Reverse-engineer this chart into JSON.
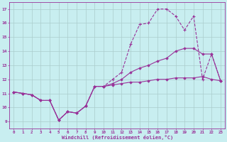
{
  "xlabel": "Windchill (Refroidissement éolien,°C)",
  "background_color": "#c8eef0",
  "line_color": "#993399",
  "grid_color": "#aacccc",
  "x_ticks": [
    0,
    1,
    2,
    3,
    4,
    5,
    6,
    7,
    8,
    9,
    10,
    11,
    12,
    13,
    14,
    15,
    16,
    17,
    18,
    19,
    20,
    21,
    22,
    23
  ],
  "y_ticks": [
    9,
    10,
    11,
    12,
    13,
    14,
    15,
    16,
    17
  ],
  "xlim": [
    -0.5,
    23.5
  ],
  "ylim": [
    8.5,
    17.5
  ],
  "line1_y": [
    11.1,
    11.0,
    10.9,
    10.5,
    10.5,
    9.1,
    9.7,
    9.6,
    10.1,
    11.5,
    11.5,
    11.6,
    11.7,
    11.8,
    11.8,
    11.9,
    12.0,
    12.0,
    12.1,
    12.1,
    12.1,
    12.2,
    12.0,
    11.9
  ],
  "line2_y": [
    11.1,
    11.0,
    10.9,
    10.5,
    10.5,
    9.1,
    9.7,
    9.6,
    10.1,
    11.5,
    11.5,
    12.0,
    12.5,
    14.5,
    15.9,
    16.0,
    17.0,
    17.0,
    16.5,
    15.5,
    16.5,
    12.0,
    13.8,
    11.9
  ],
  "line3_y": [
    11.1,
    11.0,
    10.9,
    10.5,
    10.5,
    9.1,
    9.7,
    9.6,
    10.1,
    11.5,
    11.5,
    11.7,
    12.0,
    12.5,
    12.8,
    13.0,
    13.3,
    13.5,
    14.0,
    14.2,
    14.2,
    13.8,
    13.8,
    11.9
  ]
}
